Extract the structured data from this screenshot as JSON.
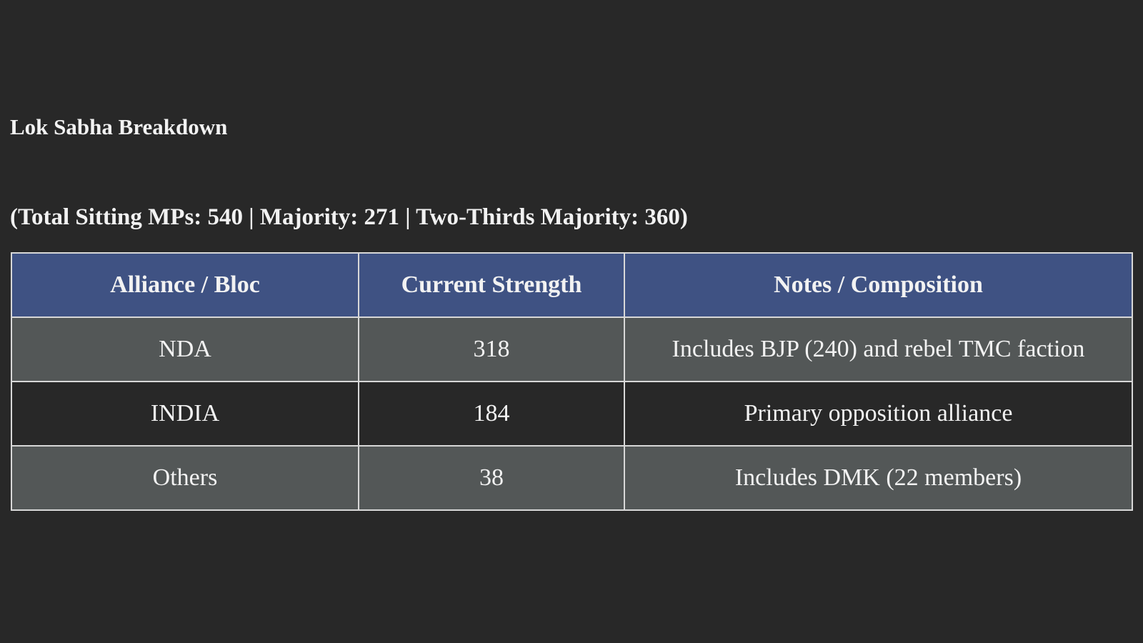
{
  "header": {
    "title": "Lok Sabha Breakdown",
    "subtitle": "(Total Sitting MPs: 540 | Majority: 271 | Two-Thirds Majority: 360)"
  },
  "table": {
    "columns": [
      "Alliance / Bloc",
      "Current Strength",
      "Notes / Composition"
    ],
    "rows": [
      [
        "NDA",
        318,
        "Includes BJP (240) and rebel TMC faction"
      ],
      [
        "INDIA",
        184,
        "Primary opposition alliance"
      ],
      [
        "Others",
        38,
        "Includes DMK (22 members)"
      ]
    ]
  }
}
